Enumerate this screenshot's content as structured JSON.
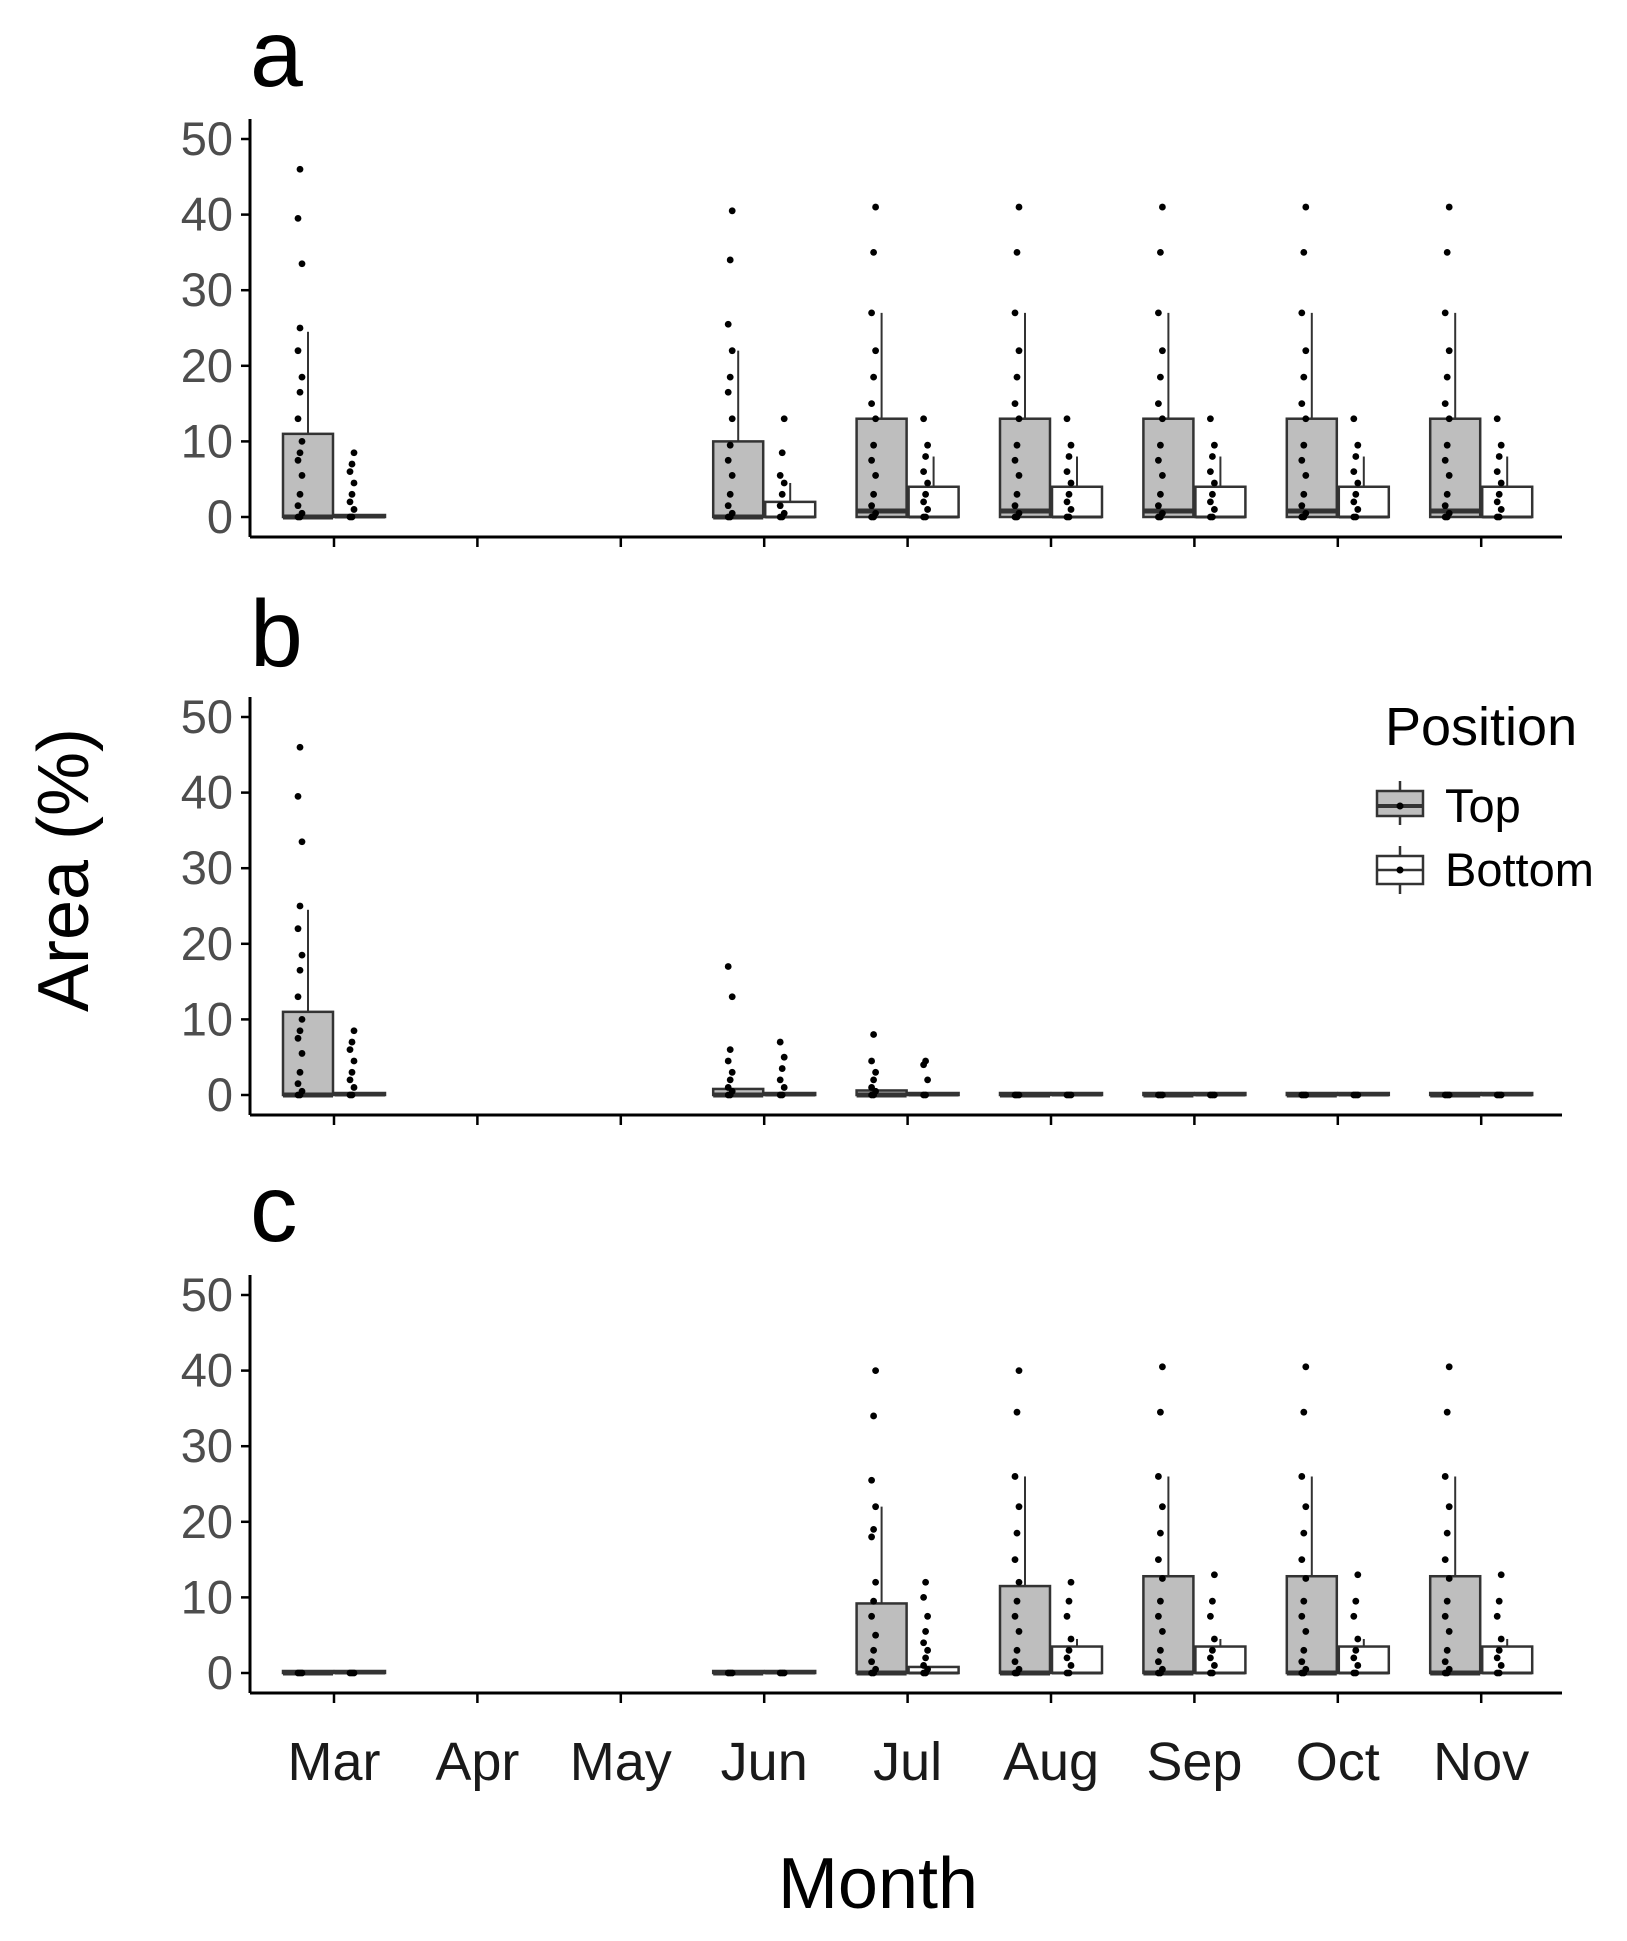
{
  "chart_data": [
    {
      "type": "box",
      "panel_label": "a",
      "categories": [
        "Mar",
        "Apr",
        "May",
        "Jun",
        "Jul",
        "Aug",
        "Sep",
        "Oct",
        "Nov"
      ],
      "ylim": [
        0,
        50
      ],
      "yticks": [
        0,
        10,
        20,
        30,
        40,
        50
      ],
      "series": [
        {
          "name": "Top",
          "boxes": [
            {
              "month": "Mar",
              "q1": 0,
              "median": 0,
              "q3": 11,
              "whisker_high": 24.5,
              "points": [
                0,
                0,
                0.5,
                1.5,
                3,
                5.5,
                7.5,
                8.5,
                10,
                13,
                16.5,
                18.5,
                22,
                25,
                33.5,
                39.5,
                46
              ]
            },
            null,
            null,
            {
              "month": "Jun",
              "q1": 0,
              "median": 0,
              "q3": 10,
              "whisker_high": 22,
              "points": [
                0,
                0,
                0.5,
                1.5,
                3,
                5.5,
                7.5,
                9.5,
                13,
                16.5,
                18.5,
                22,
                25.5,
                34,
                40.5
              ]
            },
            {
              "month": "Jul",
              "q1": 0,
              "median": 0.8,
              "q3": 13,
              "whisker_high": 27,
              "points": [
                0,
                0,
                0.5,
                1.5,
                3,
                5.5,
                7.5,
                9.5,
                13,
                15,
                18.5,
                22,
                27,
                35,
                41
              ]
            },
            {
              "month": "Aug",
              "q1": 0,
              "median": 0.8,
              "q3": 13,
              "whisker_high": 27,
              "points": [
                0,
                0,
                0.5,
                1.5,
                3,
                5.5,
                7.5,
                9.5,
                13,
                15,
                18.5,
                22,
                27,
                35,
                41
              ]
            },
            {
              "month": "Sep",
              "q1": 0,
              "median": 0.8,
              "q3": 13,
              "whisker_high": 27,
              "points": [
                0,
                0,
                0.5,
                1.5,
                3,
                5.5,
                7.5,
                9.5,
                13,
                15,
                18.5,
                22,
                27,
                35,
                41
              ]
            },
            {
              "month": "Oct",
              "q1": 0,
              "median": 0.8,
              "q3": 13,
              "whisker_high": 27,
              "points": [
                0,
                0,
                0.5,
                1.5,
                3,
                5.5,
                7.5,
                9.5,
                13,
                15,
                18.5,
                22,
                27,
                35,
                41
              ]
            },
            {
              "month": "Nov",
              "q1": 0,
              "median": 0.8,
              "q3": 13,
              "whisker_high": 27,
              "points": [
                0,
                0,
                0.5,
                1.5,
                3,
                5.5,
                7.5,
                9.5,
                13,
                15,
                18.5,
                22,
                27,
                35,
                41
              ]
            }
          ]
        },
        {
          "name": "Bottom",
          "boxes": [
            {
              "month": "Mar",
              "q1": 0,
              "median": 0,
              "q3": 0,
              "whisker_high": 0,
              "points": [
                0,
                0,
                1,
                2,
                3,
                4.5,
                6,
                7,
                8.5
              ]
            },
            null,
            null,
            {
              "month": "Jun",
              "q1": 0,
              "median": 0,
              "q3": 2,
              "whisker_high": 4.5,
              "points": [
                0,
                0,
                0.5,
                1.5,
                3,
                4.5,
                5.5,
                8.5,
                13
              ]
            },
            {
              "month": "Jul",
              "q1": 0,
              "median": 0,
              "q3": 4,
              "whisker_high": 8,
              "points": [
                0,
                0,
                1,
                2,
                3,
                4.5,
                6,
                8,
                9.5,
                13
              ]
            },
            {
              "month": "Aug",
              "q1": 0,
              "median": 0,
              "q3": 4,
              "whisker_high": 8,
              "points": [
                0,
                0,
                1,
                2,
                3,
                4.5,
                6,
                8,
                9.5,
                13
              ]
            },
            {
              "month": "Sep",
              "q1": 0,
              "median": 0,
              "q3": 4,
              "whisker_high": 8,
              "points": [
                0,
                0,
                1,
                2,
                3,
                4.5,
                6,
                8,
                9.5,
                13
              ]
            },
            {
              "month": "Oct",
              "q1": 0,
              "median": 0,
              "q3": 4,
              "whisker_high": 8,
              "points": [
                0,
                0,
                1,
                2,
                3,
                4.5,
                6,
                8,
                9.5,
                13
              ]
            },
            {
              "month": "Nov",
              "q1": 0,
              "median": 0,
              "q3": 4,
              "whisker_high": 8,
              "points": [
                0,
                0,
                1,
                2,
                3,
                4.5,
                6,
                8,
                9.5,
                13
              ]
            }
          ]
        }
      ]
    },
    {
      "type": "box",
      "panel_label": "b",
      "categories": [
        "Mar",
        "Apr",
        "May",
        "Jun",
        "Jul",
        "Aug",
        "Sep",
        "Oct",
        "Nov"
      ],
      "ylim": [
        0,
        50
      ],
      "yticks": [
        0,
        10,
        20,
        30,
        40,
        50
      ],
      "series": [
        {
          "name": "Top",
          "boxes": [
            {
              "month": "Mar",
              "q1": 0,
              "median": 0,
              "q3": 11,
              "whisker_high": 24.5,
              "points": [
                0,
                0,
                0.5,
                1.5,
                3,
                5.5,
                7.5,
                8.5,
                10,
                13,
                16.5,
                18.5,
                22,
                25,
                33.5,
                39.5,
                46
              ]
            },
            null,
            null,
            {
              "month": "Jun",
              "q1": 0,
              "median": 0,
              "q3": 0.8,
              "whisker_high": 0.8,
              "points": [
                0,
                0,
                0.5,
                1,
                2,
                3,
                4.5,
                6,
                13,
                17
              ]
            },
            {
              "month": "Jul",
              "q1": 0,
              "median": 0,
              "q3": 0.6,
              "whisker_high": 0.6,
              "points": [
                0,
                0,
                0.5,
                1,
                2,
                3,
                4.5,
                8
              ]
            },
            {
              "month": "Aug",
              "q1": 0,
              "median": 0,
              "q3": 0,
              "whisker_high": 0,
              "points": [
                0,
                0,
                0
              ]
            },
            {
              "month": "Sep",
              "q1": 0,
              "median": 0,
              "q3": 0,
              "whisker_high": 0,
              "points": [
                0,
                0,
                0
              ]
            },
            {
              "month": "Oct",
              "q1": 0,
              "median": 0,
              "q3": 0,
              "whisker_high": 0,
              "points": [
                0,
                0,
                0
              ]
            },
            {
              "month": "Nov",
              "q1": 0,
              "median": 0,
              "q3": 0,
              "whisker_high": 0,
              "points": [
                0,
                0,
                0
              ]
            }
          ]
        },
        {
          "name": "Bottom",
          "boxes": [
            {
              "month": "Mar",
              "q1": 0,
              "median": 0,
              "q3": 0,
              "whisker_high": 0,
              "points": [
                0,
                0,
                1,
                2,
                3,
                4.5,
                6,
                7,
                8.5
              ]
            },
            null,
            null,
            {
              "month": "Jun",
              "q1": 0,
              "median": 0,
              "q3": 0,
              "whisker_high": 0,
              "points": [
                0,
                0,
                1,
                2,
                3.5,
                5,
                7
              ]
            },
            {
              "month": "Jul",
              "q1": 0,
              "median": 0,
              "q3": 0,
              "whisker_high": 0,
              "points": [
                0,
                0,
                2,
                4,
                4.5
              ]
            },
            {
              "month": "Aug",
              "q1": 0,
              "median": 0,
              "q3": 0,
              "whisker_high": 0,
              "points": [
                0,
                0,
                0
              ]
            },
            {
              "month": "Sep",
              "q1": 0,
              "median": 0,
              "q3": 0,
              "whisker_high": 0,
              "points": [
                0,
                0,
                0
              ]
            },
            {
              "month": "Oct",
              "q1": 0,
              "median": 0,
              "q3": 0,
              "whisker_high": 0,
              "points": [
                0,
                0,
                0
              ]
            },
            {
              "month": "Nov",
              "q1": 0,
              "median": 0,
              "q3": 0,
              "whisker_high": 0,
              "points": [
                0,
                0,
                0
              ]
            }
          ]
        }
      ]
    },
    {
      "type": "box",
      "panel_label": "c",
      "categories": [
        "Mar",
        "Apr",
        "May",
        "Jun",
        "Jul",
        "Aug",
        "Sep",
        "Oct",
        "Nov"
      ],
      "ylim": [
        0,
        50
      ],
      "yticks": [
        0,
        10,
        20,
        30,
        40,
        50
      ],
      "series": [
        {
          "name": "Top",
          "boxes": [
            {
              "month": "Mar",
              "q1": 0,
              "median": 0,
              "q3": 0,
              "whisker_high": 0,
              "points": [
                0,
                0,
                0
              ]
            },
            null,
            null,
            {
              "month": "Jun",
              "q1": 0,
              "median": 0,
              "q3": 0,
              "whisker_high": 0,
              "points": [
                0,
                0,
                0
              ]
            },
            {
              "month": "Jul",
              "q1": 0,
              "median": 0,
              "q3": 9.2,
              "whisker_high": 22,
              "points": [
                0,
                0,
                0.5,
                1.5,
                3,
                5,
                7.5,
                9.5,
                12,
                18,
                19,
                22,
                25.5,
                34,
                40
              ]
            },
            {
              "month": "Aug",
              "q1": 0,
              "median": 0,
              "q3": 11.5,
              "whisker_high": 26,
              "points": [
                0,
                0,
                0.5,
                1.5,
                3,
                5.5,
                7.5,
                9.5,
                12,
                15,
                18.5,
                22,
                26,
                34.5,
                40
              ]
            },
            {
              "month": "Sep",
              "q1": 0,
              "median": 0,
              "q3": 12.8,
              "whisker_high": 26,
              "points": [
                0,
                0,
                0.5,
                1.5,
                3,
                5.5,
                7.5,
                9.5,
                12.5,
                15,
                18.5,
                22,
                26,
                34.5,
                40.5
              ]
            },
            {
              "month": "Oct",
              "q1": 0,
              "median": 0,
              "q3": 12.8,
              "whisker_high": 26,
              "points": [
                0,
                0,
                0.5,
                1.5,
                3,
                5.5,
                7.5,
                9.5,
                12.5,
                15,
                18.5,
                22,
                26,
                34.5,
                40.5
              ]
            },
            {
              "month": "Nov",
              "q1": 0,
              "median": 0,
              "q3": 12.8,
              "whisker_high": 26,
              "points": [
                0,
                0,
                0.5,
                1.5,
                3,
                5.5,
                7.5,
                9.5,
                12.5,
                15,
                18.5,
                22,
                26,
                34.5,
                40.5
              ]
            }
          ]
        },
        {
          "name": "Bottom",
          "boxes": [
            {
              "month": "Mar",
              "q1": 0,
              "median": 0,
              "q3": 0,
              "whisker_high": 0,
              "points": [
                0,
                0,
                0
              ]
            },
            null,
            null,
            {
              "month": "Jun",
              "q1": 0,
              "median": 0,
              "q3": 0,
              "whisker_high": 0,
              "points": [
                0,
                0,
                0
              ]
            },
            {
              "month": "Jul",
              "q1": 0,
              "median": 0,
              "q3": 0.8,
              "whisker_high": 0.8,
              "points": [
                0,
                0,
                0.5,
                1,
                2,
                3,
                4,
                5.5,
                7.5,
                10,
                12
              ]
            },
            {
              "month": "Aug",
              "q1": 0,
              "median": 0,
              "q3": 3.5,
              "whisker_high": 4.5,
              "points": [
                0,
                0,
                1,
                2,
                3,
                4.5,
                7.5,
                9.5,
                12
              ]
            },
            {
              "month": "Sep",
              "q1": 0,
              "median": 0,
              "q3": 3.5,
              "whisker_high": 4.5,
              "points": [
                0,
                0,
                1,
                2,
                3,
                4.5,
                7.5,
                9.5,
                13
              ]
            },
            {
              "month": "Oct",
              "q1": 0,
              "median": 0,
              "q3": 3.5,
              "whisker_high": 4.5,
              "points": [
                0,
                0,
                1,
                2,
                3,
                4.5,
                7.5,
                9.5,
                13
              ]
            },
            {
              "month": "Nov",
              "q1": 0,
              "median": 0,
              "q3": 3.5,
              "whisker_high": 4.5,
              "points": [
                0,
                0,
                1,
                2,
                3,
                4.5,
                7.5,
                9.5,
                13
              ]
            }
          ]
        }
      ]
    }
  ],
  "labels": {
    "ylabel": "Area (%)",
    "xlabel": "Month",
    "legend_title": "Position",
    "legend_items": [
      "Top",
      "Bottom"
    ]
  },
  "colors": {
    "top_fill": "#bebebe",
    "bottom_fill": "#ffffff",
    "outline": "#333333",
    "axis": "#000000",
    "point": "#000000"
  }
}
